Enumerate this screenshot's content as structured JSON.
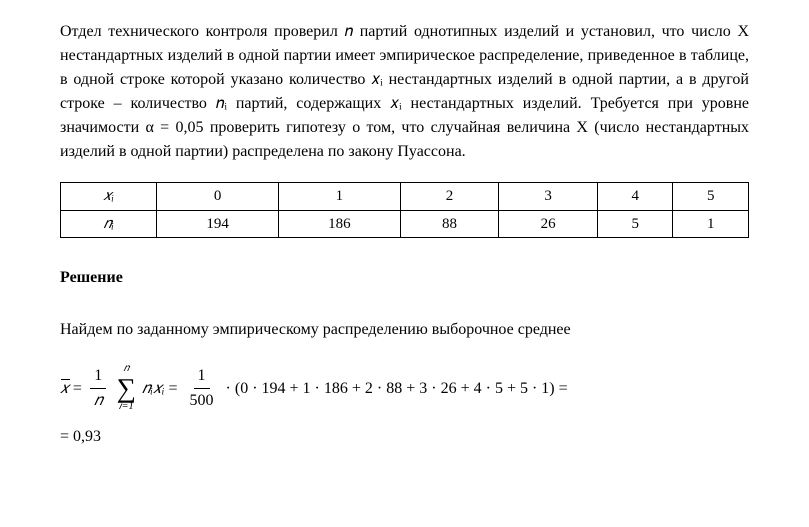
{
  "problem": {
    "text": "Отдел технического контроля проверил 𝑛 партий однотипных изделий и установил, что число X нестандартных изделий в одной партии имеет эмпирическое распределение, приведенное в таблице, в одной строке которой указано количество 𝑥ᵢ нестандартных изделий в одной партии, а в другой строке – количество 𝑛ᵢ партий, содержащих 𝑥ᵢ нестандартных изделий. Требуется при уровне значимости α = 0,05 проверить гипотезу о том, что случайная величина X (число нестандартных изделий в одной партии) распределена по закону Пуассона."
  },
  "table": {
    "row_labels": [
      "𝑥ᵢ",
      "𝑛ᵢ"
    ],
    "columns": [
      "0",
      "1",
      "2",
      "3",
      "4",
      "5"
    ],
    "values": [
      "194",
      "186",
      "88",
      "26",
      "5",
      "1"
    ],
    "border_color": "#000000",
    "cell_fontsize": 15
  },
  "solution": {
    "heading": "Решение",
    "intro": "Найдем по заданному эмпирическому распределению выборочное среднее",
    "formula": {
      "lhs": "𝑥̄",
      "eq": "=",
      "frac1_num": "1",
      "frac1_den": "𝑛",
      "sum_top": "𝑛",
      "sum_bottom": "𝑖=1",
      "sum_term": "𝑛ᵢ𝑥ᵢ",
      "frac2_num": "1",
      "frac2_den": "500",
      "dot": "·",
      "expansion": "(0 · 194 + 1 · 186 + 2 · 88 + 3 · 26 + 4 · 5 + 5 · 1) =",
      "result_prefix": "=",
      "result": "0,93"
    }
  },
  "style": {
    "font_family": "Times New Roman",
    "body_fontsize": 16,
    "text_color": "#000000",
    "background_color": "#ffffff"
  }
}
